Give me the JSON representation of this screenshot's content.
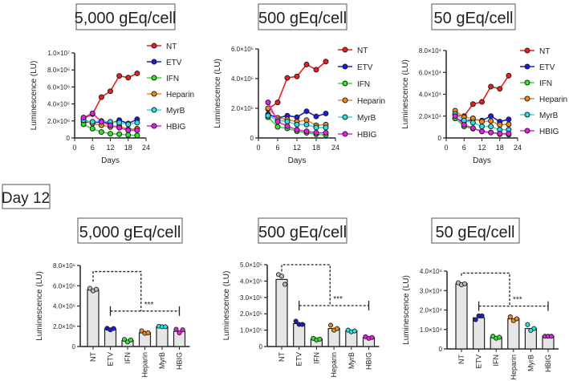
{
  "series_colors": {
    "NT": "#e8201e",
    "ETV": "#1a1ad8",
    "IFN": "#2ee82e",
    "Heparin": "#f08a1e",
    "MyrB": "#2ee0e0",
    "HBIG": "#e81ee8"
  },
  "section_label": "Day 12",
  "chart_data": [
    {
      "type": "line",
      "title": "5,000 gEq/cell",
      "xlabel": "Days",
      "ylabel": "Luminescence (LU)",
      "xlim": [
        0,
        24
      ],
      "xticks": [
        0,
        6,
        12,
        18,
        24
      ],
      "ylim": [
        0,
        10000000
      ],
      "yticks": [
        {
          "v": 0,
          "label": "0"
        },
        {
          "v": 2000000,
          "label": "2.0×10⁶"
        },
        {
          "v": 4000000,
          "label": "4.0×10⁶"
        },
        {
          "v": 6000000,
          "label": "6.0×10⁶"
        },
        {
          "v": 8000000,
          "label": "8.0×10⁶"
        },
        {
          "v": 10000000,
          "label": "1.0×10⁷"
        }
      ],
      "x": [
        3,
        6,
        9,
        12,
        15,
        18,
        21
      ],
      "series": [
        {
          "name": "NT",
          "values": [
            2300000,
            2800000,
            4800000,
            5500000,
            7300000,
            7100000,
            7600000
          ]
        },
        {
          "name": "ETV",
          "values": [
            1900000,
            1800000,
            1900000,
            1700000,
            2100000,
            1700000,
            2200000
          ]
        },
        {
          "name": "IFN",
          "values": [
            1600000,
            1100000,
            700000,
            500000,
            450000,
            350000,
            300000
          ]
        },
        {
          "name": "Heparin",
          "values": [
            2100000,
            1700000,
            1500000,
            1300000,
            1400000,
            1000000,
            1100000
          ]
        },
        {
          "name": "MyrB",
          "values": [
            2100000,
            1900000,
            2000000,
            1900000,
            1800000,
            1600000,
            1800000
          ]
        },
        {
          "name": "HBIG",
          "values": [
            2400000,
            2900000,
            1900000,
            1500000,
            1200000,
            900000,
            900000
          ]
        }
      ],
      "legend": "right"
    },
    {
      "type": "line",
      "title": "500 gEq/cell",
      "xlabel": "Days",
      "ylabel": "Luminescence (LU)",
      "xlim": [
        0,
        24
      ],
      "xticks": [
        0,
        6,
        12,
        18,
        24
      ],
      "ylim": [
        0,
        600000
      ],
      "yticks": [
        {
          "v": 0,
          "label": "0"
        },
        {
          "v": 200000,
          "label": "2.0×10⁵"
        },
        {
          "v": 400000,
          "label": "4.0×10⁵"
        },
        {
          "v": 600000,
          "label": "6.0×10⁵"
        }
      ],
      "x": [
        3,
        6,
        9,
        12,
        15,
        18,
        21
      ],
      "series": [
        {
          "name": "NT",
          "values": [
            195000,
            240000,
            405000,
            415000,
            495000,
            460000,
            515000
          ]
        },
        {
          "name": "ETV",
          "values": [
            160000,
            135000,
            150000,
            140000,
            180000,
            145000,
            165000
          ]
        },
        {
          "name": "IFN",
          "values": [
            140000,
            75000,
            65000,
            45000,
            35000,
            25000,
            20000
          ]
        },
        {
          "name": "Heparin",
          "values": [
            200000,
            135000,
            125000,
            110000,
            120000,
            85000,
            90000
          ]
        },
        {
          "name": "MyrB",
          "values": [
            150000,
            120000,
            110000,
            90000,
            90000,
            70000,
            70000
          ]
        },
        {
          "name": "HBIG",
          "values": [
            240000,
            110000,
            80000,
            55000,
            45000,
            35000,
            35000
          ]
        }
      ],
      "legend": "right"
    },
    {
      "type": "line",
      "title": "50 gEq/cell",
      "xlabel": "Days",
      "ylabel": "Luminescence (LU)",
      "xlim": [
        0,
        24
      ],
      "xticks": [
        0,
        6,
        12,
        18,
        24
      ],
      "ylim": [
        0,
        80000
      ],
      "yticks": [
        {
          "v": 0,
          "label": "0"
        },
        {
          "v": 20000,
          "label": "2.0×10⁴"
        },
        {
          "v": 40000,
          "label": "4.0×10⁴"
        },
        {
          "v": 60000,
          "label": "6.0×10⁴"
        },
        {
          "v": 80000,
          "label": "8.0×10⁴"
        }
      ],
      "x": [
        3,
        6,
        9,
        12,
        15,
        18,
        21
      ],
      "series": [
        {
          "name": "NT",
          "values": [
            21000,
            20000,
            31000,
            33000,
            47000,
            45000,
            57000
          ]
        },
        {
          "name": "ETV",
          "values": [
            18000,
            15000,
            17000,
            16000,
            20000,
            15000,
            17000
          ]
        },
        {
          "name": "IFN",
          "values": [
            18000,
            10500,
            8500,
            6000,
            5000,
            3500,
            3000
          ]
        },
        {
          "name": "Heparin",
          "values": [
            25000,
            19000,
            18000,
            15000,
            15500,
            12000,
            12500
          ]
        },
        {
          "name": "MyrB",
          "values": [
            22000,
            16000,
            14000,
            10500,
            10500,
            7500,
            7500
          ]
        },
        {
          "name": "HBIG",
          "values": [
            20000,
            12000,
            9000,
            6000,
            5000,
            4000,
            4000
          ]
        }
      ],
      "legend": "right"
    },
    {
      "type": "bar",
      "title": "5,000 gEq/cell",
      "ylabel": "Luminescence (LU)",
      "ylim": [
        0,
        8000000
      ],
      "yticks": [
        {
          "v": 0,
          "label": "0"
        },
        {
          "v": 2000000,
          "label": "2.0×10⁶"
        },
        {
          "v": 4000000,
          "label": "4.0×10⁶"
        },
        {
          "v": 6000000,
          "label": "6.0×10⁶"
        },
        {
          "v": 8000000,
          "label": "8.0×10⁶"
        }
      ],
      "categories": [
        "NT",
        "ETV",
        "IFN",
        "Heparin",
        "MyrB",
        "HBIG"
      ],
      "values": [
        5600000,
        1750000,
        600000,
        1350000,
        1950000,
        1500000
      ],
      "points": [
        [
          5750000,
          5500000,
          5650000
        ],
        [
          1800000,
          1650000,
          1780000
        ],
        [
          700000,
          450000,
          650000
        ],
        [
          1550000,
          1300000,
          1350000
        ],
        [
          2000000,
          1950000,
          1950000
        ],
        [
          1700000,
          1350000,
          1650000
        ]
      ],
      "significance": {
        "label": "***",
        "level": 7400000,
        "group_level": 3500000
      }
    },
    {
      "type": "bar",
      "title": "500 gEq/cell",
      "ylabel": "Luminescence (LU)",
      "ylim": [
        0,
        500000
      ],
      "yticks": [
        {
          "v": 0,
          "label": "0"
        },
        {
          "v": 100000,
          "label": "1.0×10⁵"
        },
        {
          "v": 200000,
          "label": "2.0×10⁵"
        },
        {
          "v": 300000,
          "label": "3.0×10⁵"
        },
        {
          "v": 400000,
          "label": "4.0×10⁵"
        },
        {
          "v": 500000,
          "label": "5.0×10⁵"
        }
      ],
      "categories": [
        "NT",
        "ETV",
        "IFN",
        "Heparin",
        "MyrB",
        "HBIG"
      ],
      "values": [
        410000,
        140000,
        45000,
        110000,
        95000,
        55000
      ],
      "points": [
        [
          440000,
          430000,
          380000
        ],
        [
          155000,
          135000,
          135000
        ],
        [
          50000,
          40000,
          45000
        ],
        [
          130000,
          100000,
          110000
        ],
        [
          100000,
          90000,
          95000
        ],
        [
          60000,
          50000,
          55000
        ]
      ],
      "significance": {
        "label": "***",
        "level": 500000,
        "group_level": 250000
      }
    },
    {
      "type": "bar",
      "title": "50 gEq/cell",
      "ylabel": "Luminescence (LU)",
      "ylim": [
        0,
        40000
      ],
      "yticks": [
        {
          "v": 0,
          "label": "0"
        },
        {
          "v": 10000,
          "label": "1.0×10⁴"
        },
        {
          "v": 20000,
          "label": "2.0×10⁴"
        },
        {
          "v": 30000,
          "label": "3.0×10⁴"
        },
        {
          "v": 40000,
          "label": "4.0×10⁴"
        }
      ],
      "categories": [
        "NT",
        "ETV",
        "IFN",
        "Heparin",
        "MyrB",
        "HBIG"
      ],
      "values": [
        33500,
        16000,
        6000,
        15500,
        10500,
        6500
      ],
      "points": [
        [
          34000,
          33000,
          33500
        ],
        [
          15000,
          17000,
          17000
        ],
        [
          6500,
          5500,
          6000
        ],
        [
          16500,
          14500,
          15500
        ],
        [
          12500,
          9500,
          10500
        ],
        [
          6500,
          6500,
          6500
        ]
      ],
      "significance": {
        "label": "***",
        "level": 39000,
        "group_level": 22000
      }
    }
  ]
}
